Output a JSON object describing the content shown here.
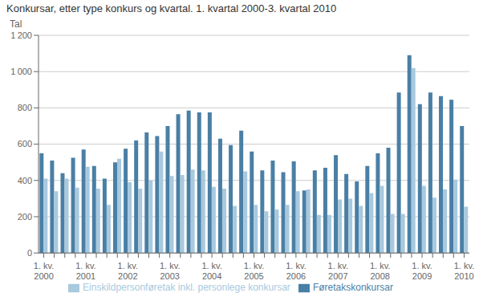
{
  "chart_data": {
    "type": "bar",
    "title": "Konkursar, etter type konkurs og kvartal. 1. kvartal 2000-3. kvartal 2010",
    "ylabel": "Tal",
    "categories": [
      "1. kv.\n2000",
      null,
      null,
      null,
      "1. kv.\n2001",
      null,
      null,
      null,
      "1. kv.\n2002",
      null,
      null,
      null,
      "1. kv.\n2003",
      null,
      null,
      null,
      "1. kv.\n2004",
      null,
      null,
      null,
      "1. kv.\n2005",
      null,
      null,
      null,
      "1. kv.\n2006",
      null,
      null,
      null,
      "1. kv.\n2007",
      null,
      null,
      null,
      "1. kv.\n2008",
      null,
      null,
      null,
      "1. kv.\n2009",
      null,
      null,
      null,
      "1. kv.\n2010"
    ],
    "series": [
      {
        "name": "Føretakskonkursar",
        "color": "#4a7fa5",
        "values": [
          550,
          510,
          440,
          525,
          570,
          480,
          410,
          500,
          575,
          620,
          665,
          645,
          700,
          765,
          785,
          775,
          775,
          630,
          595,
          675,
          560,
          455,
          510,
          445,
          505,
          345,
          455,
          470,
          540,
          435,
          395,
          480,
          550,
          580,
          885,
          1090,
          820,
          885,
          865,
          845,
          700
        ]
      },
      {
        "name": "Einskildpersonføretak inkl. personlege konkursar",
        "color": "#a8c9de",
        "values": [
          410,
          340,
          410,
          360,
          475,
          355,
          265,
          520,
          390,
          355,
          400,
          560,
          425,
          430,
          460,
          455,
          365,
          355,
          260,
          450,
          265,
          230,
          240,
          265,
          340,
          350,
          210,
          210,
          295,
          300,
          260,
          330,
          370,
          215,
          215,
          1020,
          370,
          305,
          350,
          405,
          255
        ]
      }
    ],
    "ylim": [
      0,
      1200
    ],
    "yticks": [
      0,
      200,
      400,
      600,
      800,
      {
        "value": 1000,
        "label": "1 000"
      },
      {
        "value": 1200,
        "label": "1 200"
      }
    ],
    "grid": true,
    "legend": "bottom"
  }
}
